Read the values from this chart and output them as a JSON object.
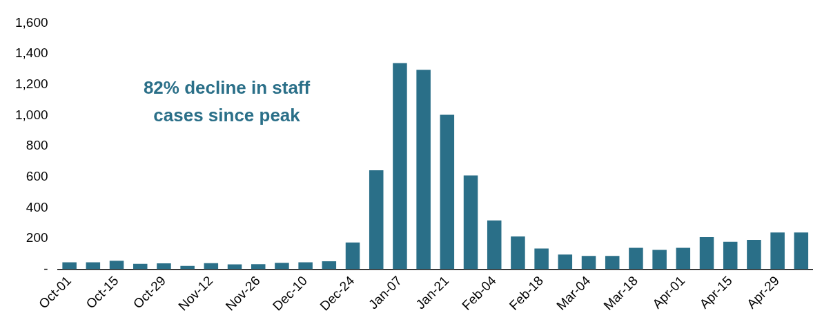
{
  "chart_data": {
    "type": "bar",
    "categories": [
      "Oct-01",
      null,
      "Oct-15",
      null,
      "Oct-29",
      null,
      "Nov-12",
      null,
      "Nov-26",
      null,
      "Dec-10",
      null,
      "Dec-24",
      null,
      "Jan-07",
      null,
      "Jan-21",
      null,
      "Feb-04",
      null,
      "Feb-18",
      null,
      "Mar-04",
      null,
      "Mar-18",
      null,
      "Apr-01",
      null,
      "Apr-15",
      null,
      "Apr-29",
      null
    ],
    "values": [
      45,
      45,
      55,
      35,
      38,
      22,
      40,
      32,
      33,
      42,
      45,
      52,
      174,
      643,
      1340,
      1296,
      1004,
      609,
      317,
      213,
      135,
      96,
      87,
      87,
      139,
      126,
      139,
      209,
      178,
      191,
      239,
      239
    ],
    "color": "#2a6f88",
    "ylim": [
      0,
      1600
    ],
    "yticks": [
      {
        "value": 0,
        "label": "-"
      },
      200,
      400,
      600,
      800,
      {
        "value": 1000,
        "label": "1,000"
      },
      {
        "value": 1200,
        "label": "1,200"
      },
      {
        "value": 1400,
        "label": "1,400"
      },
      {
        "value": 1600,
        "label": "1,600"
      }
    ],
    "grid": false,
    "annotations": [
      "82% decline in staff\ncases since peak"
    ]
  }
}
